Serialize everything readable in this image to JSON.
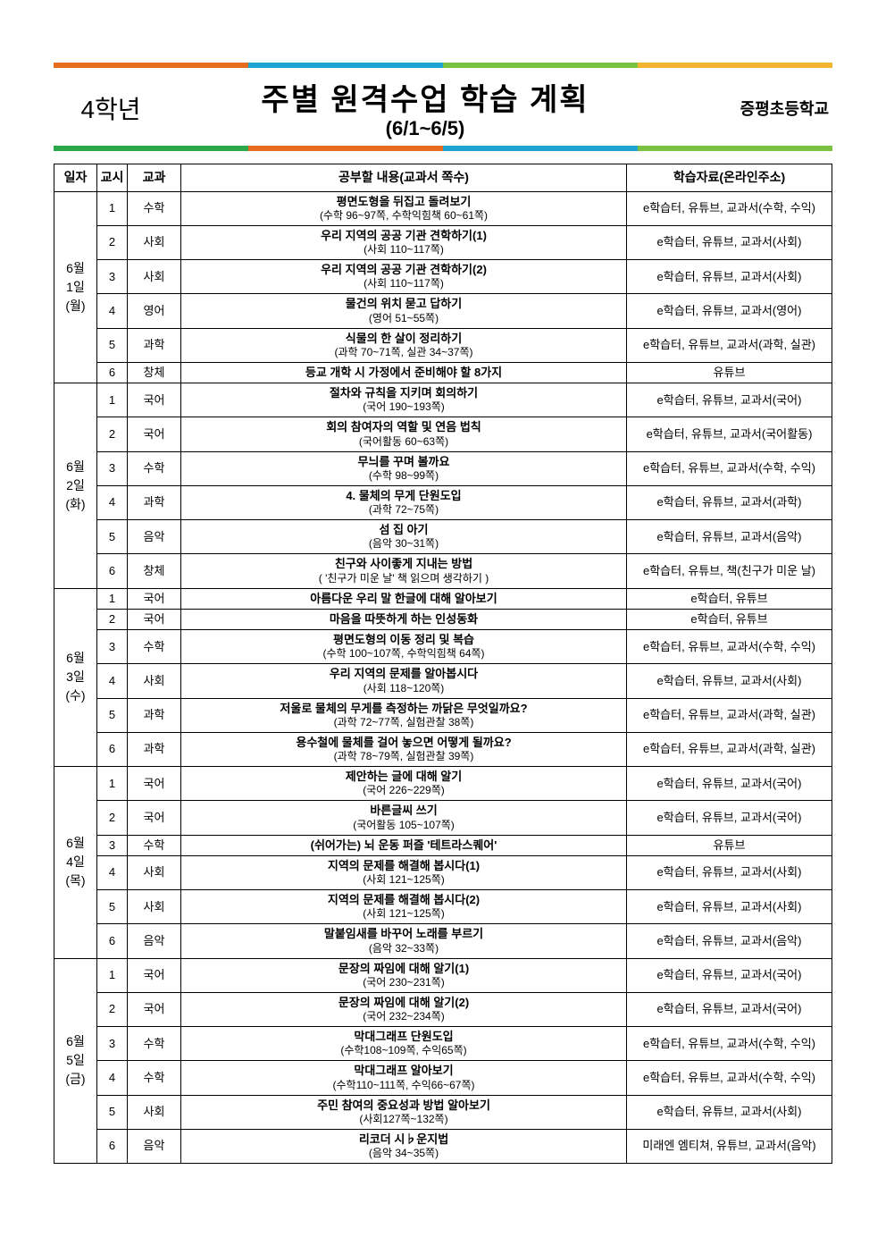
{
  "header": {
    "grade": "4학년",
    "title_main": "주별 원격수업 학습 계획",
    "title_sub": "(6/1~6/5)",
    "school": "증평초등학교",
    "top_colors": [
      "#e86c1e",
      "#1fa4d1",
      "#7cc242",
      "#f2b431"
    ],
    "bottom_colors": [
      "#2ba84a",
      "#e86c1e",
      "#1fa4d1",
      "#7cc242"
    ]
  },
  "columns": {
    "date": "일자",
    "period": "교시",
    "subject": "교과",
    "content": "공부할 내용(교과서 쪽수)",
    "material": "학습자료(온라인주소)"
  },
  "days": [
    {
      "date_lines": [
        "6월",
        "1일",
        "(월)"
      ],
      "rows": [
        {
          "period": "1",
          "subject": "수학",
          "title": "평면도형을 뒤집고 돌려보기",
          "pages": "(수학 96~97쪽, 수학익힘책 60~61쪽)",
          "material": "e학습터, 유튜브, 교과서(수학, 수익)"
        },
        {
          "period": "2",
          "subject": "사회",
          "title": "우리 지역의 공공 기관 견학하기(1)",
          "pages": "(사회 110~117쪽)",
          "material": "e학습터, 유튜브, 교과서(사회)"
        },
        {
          "period": "3",
          "subject": "사회",
          "title": "우리 지역의 공공 기관 견학하기(2)",
          "pages": "(사회 110~117쪽)",
          "material": "e학습터, 유튜브, 교과서(사회)"
        },
        {
          "period": "4",
          "subject": "영어",
          "title": "물건의 위치 묻고 답하기",
          "pages": "(영어 51~55쪽)",
          "material": "e학습터, 유튜브, 교과서(영어)"
        },
        {
          "period": "5",
          "subject": "과학",
          "title": "식물의 한 살이 정리하기",
          "pages": "(과학 70~71쪽, 실관 34~37쪽)",
          "material": "e학습터, 유튜브, 교과서(과학, 실관)"
        },
        {
          "period": "6",
          "subject": "창체",
          "title": "등교 개학 시 가정에서 준비해야 할 8가지",
          "pages": "",
          "material": "유튜브"
        }
      ]
    },
    {
      "date_lines": [
        "6월",
        "2일",
        "(화)"
      ],
      "rows": [
        {
          "period": "1",
          "subject": "국어",
          "title": "절차와 규칙을 지키며 회의하기",
          "pages": "(국어 190~193쪽)",
          "material": "e학습터, 유튜브, 교과서(국어)"
        },
        {
          "period": "2",
          "subject": "국어",
          "title": "회의 참여자의 역할 및 연음 법칙",
          "pages": "(국어활동 60~63쪽)",
          "material": "e학습터, 유튜브, 교과서(국어활동)"
        },
        {
          "period": "3",
          "subject": "수학",
          "title": "무늬를 꾸며 볼까요",
          "pages": "(수학 98~99쪽)",
          "material": "e학습터, 유튜브, 교과서(수학, 수익)"
        },
        {
          "period": "4",
          "subject": "과학",
          "title": "4. 물체의 무게 단원도입",
          "pages": "(과학 72~75쪽)",
          "material": "e학습터, 유튜브, 교과서(과학)"
        },
        {
          "period": "5",
          "subject": "음악",
          "title": "섬 집 아기",
          "pages": "(음악 30~31쪽)",
          "material": "e학습터, 유튜브, 교과서(음악)"
        },
        {
          "period": "6",
          "subject": "창체",
          "title": "친구와 사이좋게 지내는 방법",
          "pages": "( '친구가 미운 날' 책 읽으며 생각하기 )",
          "material": "e학습터, 유튜브, 책(친구가 미운 날)"
        }
      ]
    },
    {
      "date_lines": [
        "6월",
        "3일",
        "(수)"
      ],
      "rows": [
        {
          "period": "1",
          "subject": "국어",
          "title": "아름다운 우리 말 한글에 대해 알아보기",
          "pages": "",
          "material": "e학습터, 유튜브"
        },
        {
          "period": "2",
          "subject": "국어",
          "title": "마음을 따뜻하게 하는 인성동화",
          "pages": "",
          "material": "e학습터, 유튜브"
        },
        {
          "period": "3",
          "subject": "수학",
          "title": "평면도형의 이동 정리 및 복습",
          "pages": "(수학 100~107쪽, 수학익힘책 64쪽)",
          "material": "e학습터, 유튜브, 교과서(수학, 수익)"
        },
        {
          "period": "4",
          "subject": "사회",
          "title": "우리 지역의 문제를 알아봅시다",
          "pages": "(사회 118~120쪽)",
          "material": "e학습터, 유튜브, 교과서(사회)"
        },
        {
          "period": "5",
          "subject": "과학",
          "title": "저울로 물체의 무게를 측정하는 까닭은 무엇일까요?",
          "pages": "(과학 72~77쪽, 실험관찰 38쪽)",
          "material": "e학습터, 유튜브, 교과서(과학, 실관)"
        },
        {
          "period": "6",
          "subject": "과학",
          "title": "용수철에 물체를 걸어 놓으면 어떻게 될까요?",
          "pages": "(과학 78~79쪽, 실험관찰 39쪽)",
          "material": "e학습터, 유튜브, 교과서(과학, 실관)"
        }
      ]
    },
    {
      "date_lines": [
        "6월",
        "4일",
        "(목)"
      ],
      "rows": [
        {
          "period": "1",
          "subject": "국어",
          "title": "제안하는 글에 대해 알기",
          "pages": "(국어 226~229쪽)",
          "material": "e학습터, 유튜브, 교과서(국어)"
        },
        {
          "period": "2",
          "subject": "국어",
          "title": "바른글씨 쓰기",
          "pages": "(국어활동 105~107쪽)",
          "material": "e학습터, 유튜브, 교과서(국어)"
        },
        {
          "period": "3",
          "subject": "수학",
          "title": "(쉬어가는) 뇌 운동 퍼즐 '테트라스퀘어'",
          "pages": "",
          "material": "유튜브"
        },
        {
          "period": "4",
          "subject": "사회",
          "title": "지역의 문제를 해결해 봅시다(1)",
          "pages": "(사회 121~125쪽)",
          "material": "e학습터, 유튜브, 교과서(사회)"
        },
        {
          "period": "5",
          "subject": "사회",
          "title": "지역의 문제를 해결해 봅시다(2)",
          "pages": "(사회 121~125쪽)",
          "material": "e학습터, 유튜브, 교과서(사회)"
        },
        {
          "period": "6",
          "subject": "음악",
          "title": "말붙임새를 바꾸어 노래를 부르기",
          "pages": "(음악 32~33쪽)",
          "material": "e학습터, 유튜브, 교과서(음악)"
        }
      ]
    },
    {
      "date_lines": [
        "6월",
        "5일",
        "(금)"
      ],
      "rows": [
        {
          "period": "1",
          "subject": "국어",
          "title": "문장의 짜임에 대해 알기(1)",
          "pages": "(국어 230~231쪽)",
          "material": "e학습터, 유튜브, 교과서(국어)"
        },
        {
          "period": "2",
          "subject": "국어",
          "title": "문장의 짜임에 대해 알기(2)",
          "pages": "(국어 232~234쪽)",
          "material": "e학습터, 유튜브, 교과서(국어)"
        },
        {
          "period": "3",
          "subject": "수학",
          "title": "막대그래프 단원도입",
          "pages": "(수학108~109쪽, 수익65쪽)",
          "material": "e학습터, 유튜브, 교과서(수학, 수익)"
        },
        {
          "period": "4",
          "subject": "수학",
          "title": "막대그래프 알아보기",
          "pages": "(수학110~111쪽, 수익66~67쪽)",
          "material": "e학습터, 유튜브, 교과서(수학, 수익)"
        },
        {
          "period": "5",
          "subject": "사회",
          "title": "주민 참여의 중요성과 방법 알아보기",
          "pages": "(사회127쪽~132쪽)",
          "material": "e학습터, 유튜브, 교과서(사회)"
        },
        {
          "period": "6",
          "subject": "음악",
          "title": "리코더 시♭운지법",
          "pages": "(음악 34~35쪽)",
          "material": "미래엔 엠티쳐, 유튜브, 교과서(음악)"
        }
      ]
    }
  ]
}
